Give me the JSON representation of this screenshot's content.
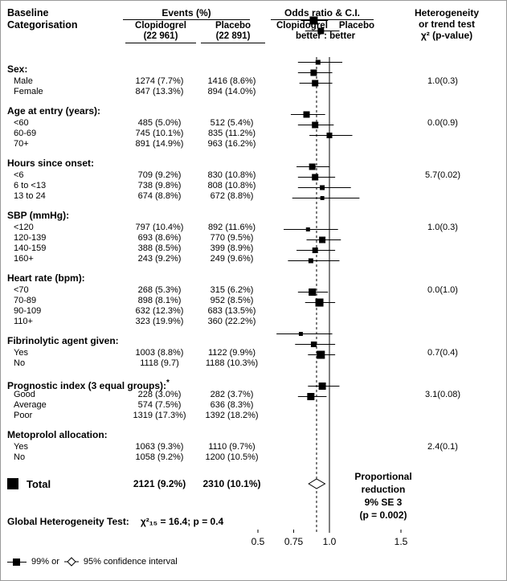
{
  "header": {
    "baseline_line1": "Baseline",
    "baseline_line2": "Categorisation",
    "events_title": "Events (%)",
    "clop_name": "Clopidogrel",
    "clop_n": "(22 961)",
    "plac_name": "Placebo",
    "plac_n": "(22 891)",
    "or_title": "Odds ratio & C.I.",
    "or_left": "Clopidogrel",
    "or_right": "Placebo",
    "or_sub": "better : better",
    "het_line1": "Heterogeneity",
    "het_line2": "or trend test",
    "het_line3": "χ² (p-value)"
  },
  "chart_data": {
    "type": "forest",
    "axis": {
      "scale": "linear",
      "ticks": [
        0.5,
        0.75,
        1.0,
        1.5
      ],
      "tick_labels": [
        "0.5",
        "0.75",
        "1.0",
        "1.5"
      ],
      "solid_line_at": 1.0,
      "dashed_line_at": 0.91
    },
    "groups": [
      {
        "label": "Sex:",
        "het": "1.0(0.3)",
        "rows": [
          {
            "label": "Male",
            "clopidogrel": "1274 (7.7%)",
            "placebo": "1416 (8.6%)",
            "or": 0.89,
            "lo": 0.8,
            "hi": 0.99,
            "size": 10
          },
          {
            "label": "Female",
            "clopidogrel": "847 (13.3%)",
            "placebo": "894 (14.0%)",
            "or": 0.94,
            "lo": 0.83,
            "hi": 1.07,
            "size": 8
          }
        ]
      },
      {
        "label": "Age at entry (years):",
        "het": "0.0(0.9)",
        "rows": [
          {
            "label": "<60",
            "clopidogrel": "485 (5.0%)",
            "placebo": "512 (5.4%)",
            "or": 0.92,
            "lo": 0.78,
            "hi": 1.09,
            "size": 6
          },
          {
            "label": "60-69",
            "clopidogrel": "745 (10.1%)",
            "placebo": "835 (11.2%)",
            "or": 0.89,
            "lo": 0.78,
            "hi": 1.02,
            "size": 8
          },
          {
            "label": "70+",
            "clopidogrel": "891 (14.9%)",
            "placebo": "963 (16.2%)",
            "or": 0.9,
            "lo": 0.79,
            "hi": 1.02,
            "size": 8
          }
        ]
      },
      {
        "label": "Hours since onset:",
        "het": "5.7(0.02)",
        "rows": [
          {
            "label": "<6",
            "clopidogrel": "709 (9.2%)",
            "placebo": "830 (10.8%)",
            "or": 0.84,
            "lo": 0.73,
            "hi": 0.97,
            "size": 8
          },
          {
            "label": "6 to <13",
            "clopidogrel": "738 (9.8%)",
            "placebo": "808 (10.8%)",
            "or": 0.9,
            "lo": 0.78,
            "hi": 1.03,
            "size": 8
          },
          {
            "label": "13 to 24",
            "clopidogrel": "674 (8.8%)",
            "placebo": "672 (8.8%)",
            "or": 1.0,
            "lo": 0.86,
            "hi": 1.16,
            "size": 7
          }
        ]
      },
      {
        "label": "SBP (mmHg):",
        "het": "1.0(0.3)",
        "rows": [
          {
            "label": "<120",
            "clopidogrel": "797 (10.4%)",
            "placebo": "892 (11.6%)",
            "or": 0.88,
            "lo": 0.77,
            "hi": 1.0,
            "size": 8
          },
          {
            "label": "120-139",
            "clopidogrel": "693 (8.6%)",
            "placebo": "770 (9.5%)",
            "or": 0.9,
            "lo": 0.78,
            "hi": 1.04,
            "size": 8
          },
          {
            "label": "140-159",
            "clopidogrel": "388 (8.5%)",
            "placebo": "399 (8.9%)",
            "or": 0.95,
            "lo": 0.78,
            "hi": 1.15,
            "size": 6
          },
          {
            "label": "160+",
            "clopidogrel": "243 (9.2%)",
            "placebo": "249 (9.6%)",
            "or": 0.95,
            "lo": 0.74,
            "hi": 1.21,
            "size": 5
          }
        ]
      },
      {
        "label": "Heart rate (bpm):",
        "het": "0.0(1.0)",
        "rows": [
          {
            "label": "<70",
            "clopidogrel": "268 (5.3%)",
            "placebo": "315 (6.2%)",
            "or": 0.85,
            "lo": 0.68,
            "hi": 1.06,
            "size": 5
          },
          {
            "label": "70-89",
            "clopidogrel": "898 (8.1%)",
            "placebo": "952 (8.5%)",
            "or": 0.95,
            "lo": 0.84,
            "hi": 1.08,
            "size": 8
          },
          {
            "label": "90-109",
            "clopidogrel": "632 (12.3%)",
            "placebo": "683 (13.5%)",
            "or": 0.9,
            "lo": 0.77,
            "hi": 1.04,
            "size": 7
          },
          {
            "label": "110+",
            "clopidogrel": "323 (19.9%)",
            "placebo": "360 (22.2%)",
            "or": 0.87,
            "lo": 0.71,
            "hi": 1.07,
            "size": 6
          }
        ]
      },
      {
        "label": "Fibrinolytic agent given:",
        "het": "0.7(0.4)",
        "rows": [
          {
            "label": "Yes",
            "clopidogrel": "1003 (8.8%)",
            "placebo": "1122 (9.9%)",
            "or": 0.88,
            "lo": 0.78,
            "hi": 0.99,
            "size": 9
          },
          {
            "label": "No",
            "clopidogrel": "1118 (9.7)",
            "placebo": "1188 (10.3%)",
            "or": 0.93,
            "lo": 0.83,
            "hi": 1.04,
            "size": 10
          }
        ]
      },
      {
        "label": "Prognostic index (3 equal groups):",
        "label_sup": "*",
        "het": "3.1(0.08)",
        "rows": [
          {
            "label": "Good",
            "clopidogrel": "228 (3.0%)",
            "placebo": "282 (3.7%)",
            "or": 0.8,
            "lo": 0.63,
            "hi": 1.02,
            "size": 5
          },
          {
            "label": "Average",
            "clopidogrel": "574 (7.5%)",
            "placebo": "636 (8.3%)",
            "or": 0.89,
            "lo": 0.76,
            "hi": 1.04,
            "size": 7
          },
          {
            "label": "Poor",
            "clopidogrel": "1319 (17.3%)",
            "placebo": "1392 (18.2%)",
            "or": 0.94,
            "lo": 0.85,
            "hi": 1.04,
            "size": 10
          }
        ]
      },
      {
        "label": "Metoprolol allocation:",
        "het": "2.4(0.1)",
        "rows": [
          {
            "label": "Yes",
            "clopidogrel": "1063 (9.3%)",
            "placebo": "1110 (9.7%)",
            "or": 0.95,
            "lo": 0.85,
            "hi": 1.07,
            "size": 9
          },
          {
            "label": "No",
            "clopidogrel": "1058 (9.2%)",
            "placebo": "1200 (10.5%)",
            "or": 0.87,
            "lo": 0.78,
            "hi": 0.98,
            "size": 9
          }
        ]
      }
    ],
    "total": {
      "label": "Total",
      "clopidogrel": "2121 (9.2%)",
      "placebo": "2310 (10.1%)",
      "or": 0.91,
      "lo": 0.855,
      "hi": 0.969,
      "note_lines": [
        "Proportional",
        "reduction",
        "9% SE 3",
        "(p = 0.002)"
      ]
    }
  },
  "footer": {
    "global_het_label": "Global Heterogeneity Test:",
    "global_het_value": "χ²₁₅ = 16.4; p = 0.4"
  },
  "legend": {
    "ci99": "99% or",
    "ci95": "95% confidence interval"
  }
}
